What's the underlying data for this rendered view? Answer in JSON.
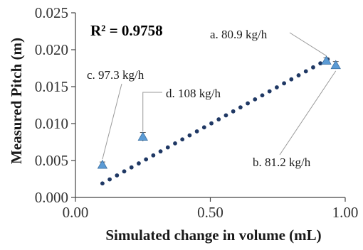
{
  "chart_data": {
    "type": "scatter",
    "xlabel": "Simulated change in volume (mL)",
    "ylabel": "Measured Pitch (m)",
    "xlim": [
      0,
      1
    ],
    "ylim": [
      0,
      0.025
    ],
    "xticks": [
      "0.00",
      "0.50",
      "1.00"
    ],
    "xtick_values": [
      0,
      0.5,
      1
    ],
    "yticks": [
      "0.000",
      "0.005",
      "0.010",
      "0.015",
      "0.020",
      "0.025"
    ],
    "ytick_values": [
      0,
      0.005,
      0.01,
      0.015,
      0.02,
      0.025
    ],
    "grid": false,
    "legend": "none",
    "annotation_r2": "R² = 0.9758",
    "measured_points": [
      {
        "label": "a. 80.9 kg/h",
        "x": 0.93,
        "y": 0.0185,
        "y_err": 0.0004
      },
      {
        "label": "b. 81.2 kg/h",
        "x": 0.965,
        "y": 0.0179,
        "y_err": 0.0005
      },
      {
        "label": "c. 97.3 kg/h",
        "x": 0.1,
        "y": 0.0044,
        "y_err": 0.0004
      },
      {
        "label": "d. 108 kg/h",
        "x": 0.25,
        "y": 0.0082,
        "y_err": 0.0006
      }
    ],
    "trendline": {
      "x_start": 0.1,
      "y_start": 0.0019,
      "x_end": 0.935,
      "y_end": 0.0187,
      "style": "dotted"
    },
    "colors": {
      "points": "#5b9bd5",
      "points_stroke": "#3b6fa0",
      "trendline": "#1f3864",
      "axis": "#444444"
    }
  }
}
